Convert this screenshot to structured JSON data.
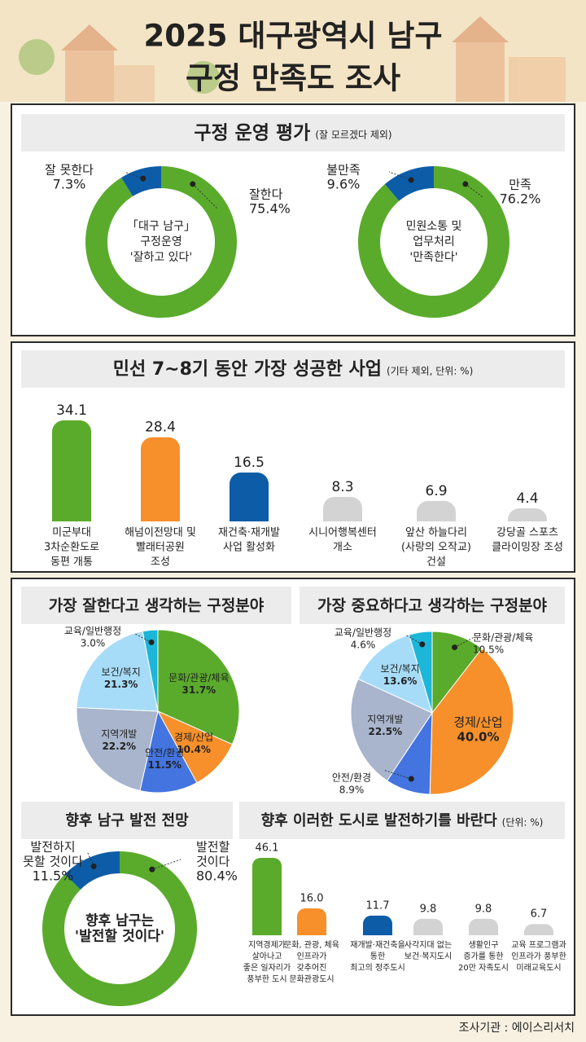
{
  "title": [
    "2025 대구광역시 남구",
    "구정 만족도 조사"
  ],
  "section": {
    "title": "구정 운영 평가",
    "note": "(잘 모르겠다 제외)"
  },
  "source": "조사기관 : 에이스리서치",
  "chart_data": [
    {
      "type": "donut",
      "categories": [
        [
          "잘한다"
        ],
        [
          "잘 못한다"
        ]
      ],
      "values": [
        75.4,
        7.3
      ],
      "value_labels": [
        "75.4%",
        "7.3%"
      ],
      "colors": [
        "#5aab2b",
        "#0d5ca8"
      ],
      "center_text": [
        "「대구 남구」",
        "구정운영",
        "'잘하고 있다'"
      ]
    },
    {
      "type": "donut",
      "categories": [
        [
          "만족"
        ],
        [
          "불만족"
        ]
      ],
      "values": [
        76.2,
        9.6
      ],
      "value_labels": [
        "76.2%",
        "9.6%"
      ],
      "colors": [
        "#5aab2b",
        "#0d5ca8"
      ],
      "center_text": [
        "민원소통 및",
        "업무처리",
        "'만족한다'"
      ]
    },
    {
      "type": "bar",
      "title": "민선 7~8기 동안 가장 성공한 사업",
      "note": "(기타 제외, 단위: %)",
      "categories": [
        [
          "미군부대",
          "3차순환도로",
          "동편 개통"
        ],
        [
          "해넘이전망대 및",
          "빨래터공원",
          "조성"
        ],
        [
          "재건축·재개발",
          "사업 활성화"
        ],
        [
          "시니어행복센터",
          "개소"
        ],
        [
          "앞산 하늘다리",
          "(사랑의 오작교)",
          "건설"
        ],
        [
          "강당골 스포츠",
          "클라이밍장 조성"
        ]
      ],
      "values": [
        34.1,
        28.4,
        16.5,
        8.3,
        6.9,
        4.4
      ],
      "colors": [
        "#5aab2b",
        "#f7902a",
        "#0d5ca8",
        "#d3d3d3",
        "#d3d3d3",
        "#d3d3d3"
      ]
    },
    {
      "type": "pie",
      "title": "가장 잘한다고 생각하는 구정분야",
      "categories": [
        [
          "문화/관광/체육"
        ],
        [
          "경제/산업"
        ],
        [
          "안전/환경"
        ],
        [
          "지역개발"
        ],
        [
          "보건/복지"
        ],
        [
          "교육/일반행정"
        ]
      ],
      "values": [
        31.7,
        10.4,
        11.5,
        22.2,
        21.3,
        3.0
      ],
      "value_labels": [
        "31.7%",
        "10.4%",
        "11.5%",
        "22.2%",
        "21.3%",
        "3.0%"
      ],
      "colors": [
        "#5aab2b",
        "#f7902a",
        "#4374e0",
        "#a9b5cd",
        "#a7dcf8",
        "#1cb6d8"
      ]
    },
    {
      "type": "pie",
      "title": "가장 중요하다고 생각하는 구정분야",
      "categories": [
        [
          "문화/관광/체육"
        ],
        [
          "경제/산업"
        ],
        [
          "안전/환경"
        ],
        [
          "지역개발"
        ],
        [
          "보건/복지"
        ],
        [
          "교육/일반행정"
        ]
      ],
      "values": [
        10.5,
        40.0,
        8.9,
        22.5,
        13.6,
        4.6
      ],
      "value_labels": [
        "10.5%",
        "40.0%",
        "8.9%",
        "22.5%",
        "13.6%",
        "4.6%"
      ],
      "colors": [
        "#5aab2b",
        "#f7902a",
        "#4374e0",
        "#a9b5cd",
        "#a7dcf8",
        "#1cb6d8"
      ]
    },
    {
      "type": "donut",
      "title": "향후 남구 발전 전망",
      "categories": [
        [
          "발전할",
          "것이다"
        ],
        [
          "발전하지",
          "못할 것이다"
        ]
      ],
      "values": [
        80.4,
        11.5
      ],
      "value_labels": [
        "80.4%",
        "11.5%"
      ],
      "colors": [
        "#5aab2b",
        "#0d5ca8"
      ],
      "center_text": [
        "향후 남구는",
        "'발전할 것이다'"
      ]
    },
    {
      "type": "bar",
      "title": "향후 이러한 도시로 발전하기를 바란다",
      "note": "(단위: %)",
      "categories": [
        [
          "지역경제가",
          "살아나고",
          "좋은 일자리가",
          "풍부한 도시"
        ],
        [
          "문화, 관광, 체육",
          "인프라가",
          "갖추어진",
          "문화관광도시"
        ],
        [
          "재개발·재건축을",
          "통한",
          "최고의 정주도시"
        ],
        [
          "사각지대 없는",
          "보건·복지도시"
        ],
        [
          "생활인구",
          "증가를 통한",
          "20만 자족도시"
        ],
        [
          "교육 프로그램과",
          "인프라가 풍부한",
          "미래교육도시"
        ]
      ],
      "values": [
        46.1,
        16.0,
        11.7,
        9.8,
        9.8,
        6.7
      ],
      "value_labels": [
        "46.1",
        "16.0",
        "11.7",
        "9.8",
        "9.8",
        "6.7"
      ],
      "colors": [
        "#5aab2b",
        "#f7902a",
        "#0d5ca8",
        "#d3d3d3",
        "#d3d3d3",
        "#d3d3d3"
      ]
    }
  ]
}
